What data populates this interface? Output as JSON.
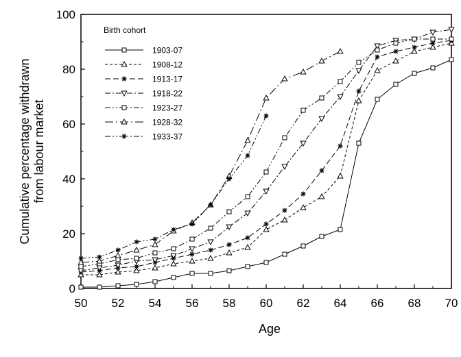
{
  "chart_data": {
    "type": "line",
    "xlabel": "Age",
    "ylabel": [
      "Cumulative percentage withdrawn",
      "from labour market"
    ],
    "xlim": [
      50,
      70
    ],
    "ylim": [
      0,
      100
    ],
    "x_ticks": [
      50,
      52,
      54,
      56,
      58,
      60,
      62,
      64,
      66,
      68,
      70
    ],
    "y_ticks": [
      0,
      20,
      40,
      60,
      80,
      100
    ],
    "grid": false,
    "legend": {
      "title": "Birth cohort",
      "placement": "top-left"
    },
    "series": [
      {
        "name": "1903-07",
        "marker": "square",
        "dash": "solid",
        "x": [
          50,
          51,
          52,
          53,
          54,
          55,
          56,
          57,
          58,
          59,
          60,
          61,
          62,
          63,
          64,
          65,
          66,
          67,
          68,
          69,
          70
        ],
        "values": [
          0.5,
          0.5,
          1,
          1.5,
          2.5,
          4,
          5.5,
          5.5,
          6.5,
          8,
          9.5,
          12.5,
          15.5,
          19,
          21.5,
          53,
          69,
          74.5,
          78.5,
          80.5,
          83.5
        ]
      },
      {
        "name": "1908-12",
        "marker": "triangle",
        "dash": "dash",
        "x": [
          50,
          51,
          52,
          53,
          54,
          55,
          56,
          57,
          58,
          59,
          60,
          61,
          62,
          63,
          64,
          65,
          66,
          67,
          68,
          69,
          70
        ],
        "values": [
          5,
          5,
          6,
          6.5,
          7.5,
          9,
          10,
          11,
          13,
          15,
          21.5,
          25,
          29.5,
          33.5,
          41,
          68.5,
          79.5,
          83,
          86.5,
          88,
          89.5
        ]
      },
      {
        "name": "1913-17",
        "marker": "star",
        "dash": "longdash",
        "x": [
          50,
          51,
          52,
          53,
          54,
          55,
          56,
          57,
          58,
          59,
          60,
          61,
          62,
          63,
          64,
          65,
          66,
          67,
          68,
          69,
          70
        ],
        "values": [
          6,
          6.5,
          7.5,
          8,
          9.5,
          11,
          12.5,
          14,
          16,
          18.5,
          23.5,
          28.5,
          34.5,
          43,
          52,
          72,
          84.5,
          86.5,
          88,
          89.5,
          90.5
        ]
      },
      {
        "name": "1918-22",
        "marker": "invtriangle",
        "dash": "dashdot",
        "x": [
          50,
          51,
          52,
          53,
          54,
          55,
          56,
          57,
          58,
          59,
          60,
          61,
          62,
          63,
          64,
          65,
          66,
          67,
          68,
          69,
          70
        ],
        "values": [
          6.5,
          7.5,
          8.5,
          10,
          10.5,
          12,
          14.5,
          17,
          22.5,
          27.5,
          35.5,
          44.5,
          53,
          62,
          70,
          79.5,
          88.5,
          90.5,
          91,
          93.5,
          94.5
        ]
      },
      {
        "name": "1923-27",
        "marker": "square",
        "dash": "dashdotdot",
        "x": [
          50,
          51,
          52,
          53,
          54,
          55,
          56,
          57,
          58,
          59,
          60,
          61,
          62,
          63,
          64,
          65,
          66,
          67,
          68,
          69,
          70
        ],
        "values": [
          8,
          9,
          10.5,
          11,
          13,
          14.5,
          18,
          22,
          28,
          33.5,
          42.5,
          55,
          65,
          69.5,
          75.5,
          82.5,
          87,
          89.5,
          91,
          91,
          91
        ]
      },
      {
        "name": "1928-32",
        "marker": "triangle",
        "dash": "longdashdot",
        "x": [
          50,
          51,
          52,
          53,
          54,
          55,
          56,
          57,
          58,
          59,
          60,
          61,
          62,
          63,
          64
        ],
        "values": [
          9.5,
          10,
          12,
          14,
          16,
          21,
          24,
          30.5,
          41,
          54,
          69.5,
          76.5,
          79,
          83,
          86.5
        ]
      },
      {
        "name": "1933-37",
        "marker": "star",
        "dash": "dashdotdot",
        "x": [
          50,
          51,
          52,
          53,
          54,
          55,
          56,
          57,
          58,
          59,
          60
        ],
        "values": [
          11,
          11.5,
          14,
          17,
          18,
          21.5,
          23.5,
          30.5,
          40,
          48.5,
          63
        ]
      }
    ]
  }
}
